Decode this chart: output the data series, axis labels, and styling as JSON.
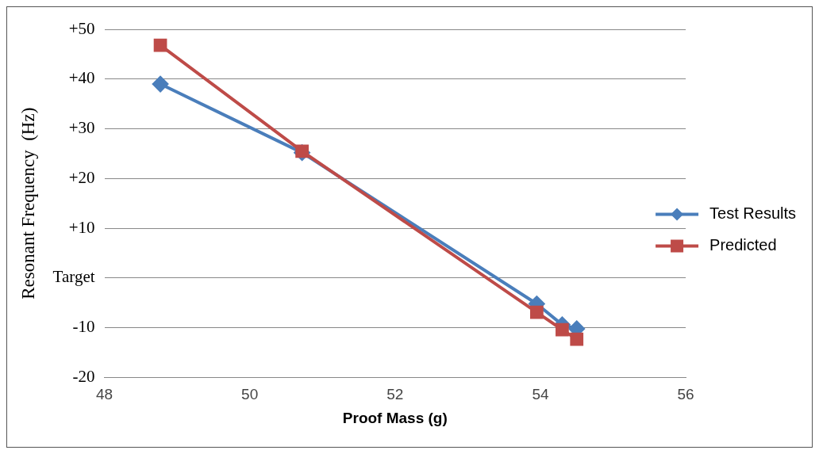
{
  "chart_data": {
    "type": "line",
    "xlabel": "Proof Mass (g)",
    "ylabel": "Resonant Frequency  (Hz)",
    "xlim": [
      48,
      56
    ],
    "xticks": [
      48,
      50,
      52,
      54,
      56
    ],
    "ylim": [
      -20,
      50
    ],
    "yticks": [
      -20,
      -10,
      {
        "value": 0,
        "label": "Target"
      },
      {
        "value": 10,
        "label": "+10"
      },
      {
        "value": 20,
        "label": "+20"
      },
      {
        "value": 30,
        "label": "+30"
      },
      {
        "value": 40,
        "label": "+40"
      },
      {
        "value": 50,
        "label": "+50"
      }
    ],
    "grid": "y",
    "legend": "right",
    "series": [
      {
        "name": "Test Results",
        "color": "#4a7ebb",
        "marker": "diamond",
        "x": [
          48.77,
          50.72,
          53.95,
          54.3,
          54.5
        ],
        "values": [
          39,
          25.2,
          -5.2,
          -9.4,
          -10.2
        ]
      },
      {
        "name": "Predicted",
        "color": "#be4b48",
        "marker": "square",
        "x": [
          48.77,
          50.72,
          53.95,
          54.3,
          54.5
        ],
        "values": [
          46.8,
          25.5,
          -6.9,
          -10.4,
          -12.3
        ]
      }
    ]
  }
}
